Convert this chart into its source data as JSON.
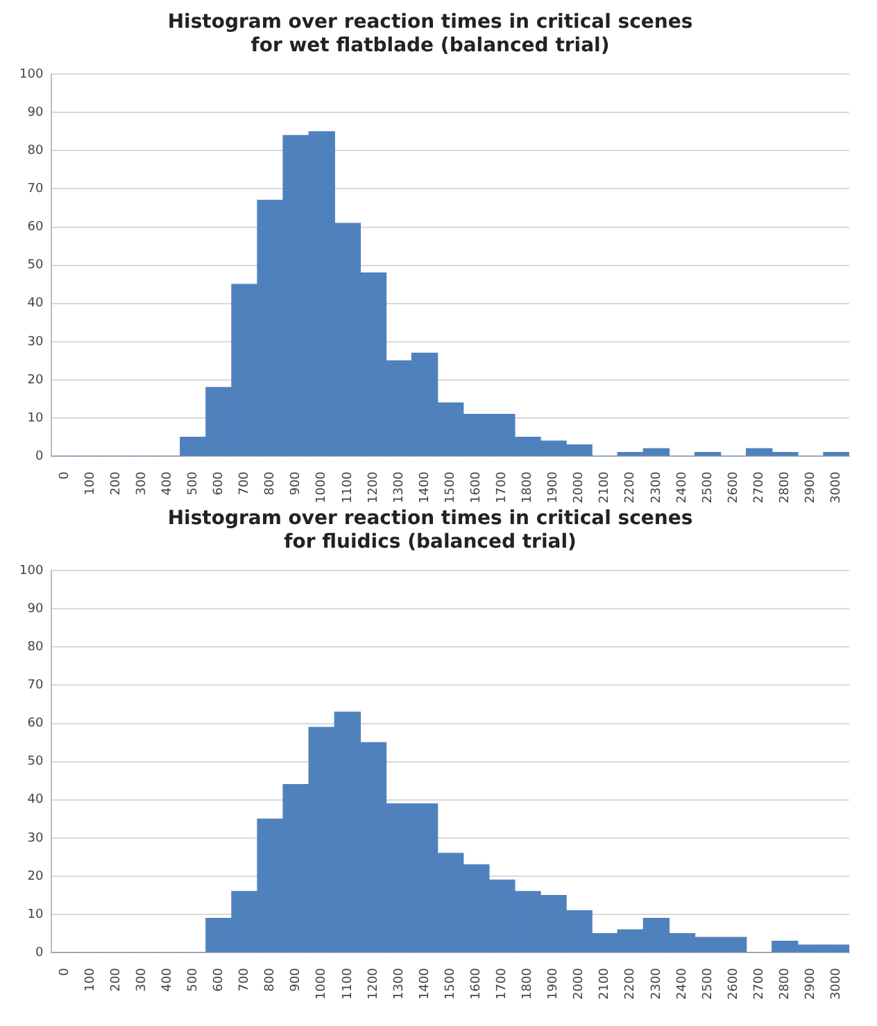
{
  "chart_data": [
    {
      "type": "bar",
      "title": "Histogram over reaction times in critical scenes\nfor wet flatblade (balanced trial)",
      "categories": [
        "0",
        "100",
        "200",
        "300",
        "400",
        "500",
        "600",
        "700",
        "800",
        "900",
        "1000",
        "1100",
        "1200",
        "1300",
        "1400",
        "1500",
        "1600",
        "1700",
        "1800",
        "1900",
        "2000",
        "2100",
        "2200",
        "2300",
        "2400",
        "2500",
        "2600",
        "2700",
        "2800",
        "2900",
        "3000"
      ],
      "values": [
        0,
        0,
        0,
        0,
        0,
        5,
        18,
        45,
        67,
        84,
        85,
        61,
        48,
        25,
        27,
        14,
        11,
        11,
        5,
        4,
        3,
        0,
        1,
        2,
        0,
        1,
        0,
        2,
        1,
        0,
        1
      ],
      "color": "#4f81bd",
      "ylim": [
        0,
        100
      ],
      "yticks": [
        0,
        10,
        20,
        30,
        40,
        50,
        60,
        70,
        80,
        90,
        100
      ],
      "grid": "y",
      "legend": false
    },
    {
      "type": "bar",
      "title": "Histogram over reaction times in critical scenes\nfor fluidics (balanced trial)",
      "categories": [
        "0",
        "100",
        "200",
        "300",
        "400",
        "500",
        "600",
        "700",
        "800",
        "900",
        "1000",
        "1100",
        "1200",
        "1300",
        "1400",
        "1500",
        "1600",
        "1700",
        "1800",
        "1900",
        "2000",
        "2100",
        "2200",
        "2300",
        "2400",
        "2500",
        "2600",
        "2700",
        "2800",
        "2900",
        "3000"
      ],
      "values": [
        0,
        0,
        0,
        0,
        0,
        0,
        9,
        16,
        35,
        44,
        59,
        63,
        55,
        39,
        39,
        26,
        23,
        19,
        16,
        15,
        11,
        5,
        6,
        9,
        5,
        4,
        4,
        0,
        3,
        2,
        2
      ],
      "color": "#4f81bd",
      "ylim": [
        0,
        100
      ],
      "yticks": [
        0,
        10,
        20,
        30,
        40,
        50,
        60,
        70,
        80,
        90,
        100
      ],
      "grid": "y",
      "legend": false
    }
  ]
}
